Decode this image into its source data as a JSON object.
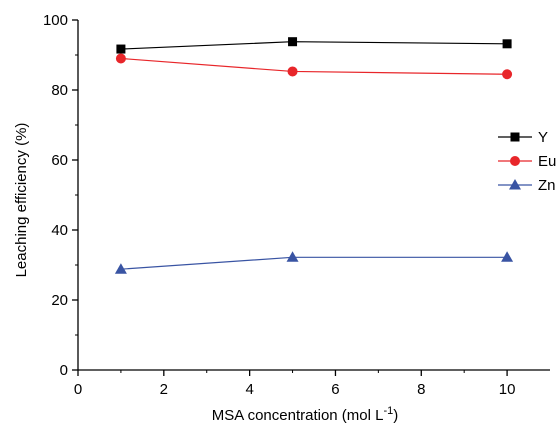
{
  "chart_data": {
    "type": "line",
    "title": "",
    "xlabel": "MSA concentration (mol L",
    "xlabel_sup": "-1",
    "xlabel_end": ")",
    "ylabel": "Leaching efficiency (%)",
    "xlim": [
      0,
      11
    ],
    "ylim": [
      0,
      100
    ],
    "x_ticks": [
      0,
      2,
      4,
      6,
      8,
      10
    ],
    "y_ticks": [
      0,
      20,
      40,
      60,
      80,
      100
    ],
    "legend_position": "right",
    "grid": false,
    "series": [
      {
        "name": "Y",
        "x": [
          1,
          5,
          10
        ],
        "y": [
          91.7,
          93.8,
          93.2
        ],
        "color": "#000000",
        "marker": "square"
      },
      {
        "name": "Eu",
        "x": [
          1,
          5,
          10
        ],
        "y": [
          89.0,
          85.3,
          84.5
        ],
        "color": "#e8262a",
        "marker": "circle"
      },
      {
        "name": "Zn",
        "x": [
          1,
          5,
          10
        ],
        "y": [
          28.8,
          32.2,
          32.2
        ],
        "color": "#3954a3",
        "marker": "triangle"
      }
    ]
  }
}
